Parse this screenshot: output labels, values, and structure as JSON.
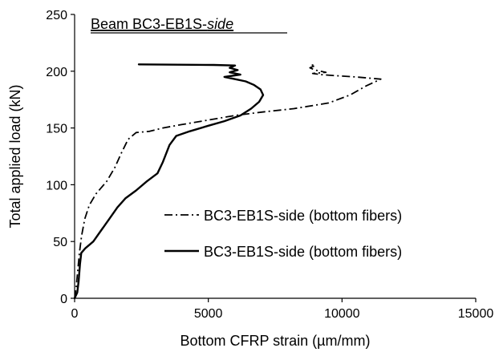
{
  "chart_data": {
    "type": "line",
    "title_prefix": "Beam BC3-EB1S-",
    "title_suffix": "side",
    "xlabel": "Bottom CFRP strain (µm/mm)",
    "ylabel": "Total applied load (kN)",
    "xlim": [
      0,
      15000
    ],
    "ylim": [
      0,
      250
    ],
    "xticks": [
      0,
      5000,
      10000,
      15000
    ],
    "yticks": [
      0,
      50,
      100,
      150,
      200,
      250
    ],
    "grid": false,
    "legend_position": "lower-right",
    "series": [
      {
        "name": "BC3-EB1S-side (bottom fibers)",
        "style": "dash-dot",
        "color": "#000000",
        "points": [
          [
            0,
            0
          ],
          [
            60,
            10
          ],
          [
            120,
            25
          ],
          [
            180,
            40
          ],
          [
            260,
            55
          ],
          [
            380,
            70
          ],
          [
            550,
            82
          ],
          [
            800,
            92
          ],
          [
            1200,
            103
          ],
          [
            1500,
            115
          ],
          [
            1750,
            128
          ],
          [
            2000,
            140
          ],
          [
            2300,
            146
          ],
          [
            2800,
            147
          ],
          [
            3300,
            150
          ],
          [
            4000,
            153
          ],
          [
            5000,
            157
          ],
          [
            6000,
            161
          ],
          [
            7000,
            164
          ],
          [
            8200,
            167
          ],
          [
            9500,
            172
          ],
          [
            10300,
            179
          ],
          [
            10900,
            187
          ],
          [
            11450,
            193
          ],
          [
            10500,
            195
          ],
          [
            9800,
            196
          ],
          [
            9200,
            197
          ],
          [
            8900,
            198
          ],
          [
            9400,
            199
          ],
          [
            9000,
            201
          ],
          [
            8800,
            203
          ],
          [
            9000,
            205
          ],
          [
            8750,
            206
          ]
        ]
      },
      {
        "name": "BC3-EB1S-side (bottom fibers)",
        "style": "solid",
        "color": "#000000",
        "points": [
          [
            0,
            0
          ],
          [
            100,
            5
          ],
          [
            150,
            15
          ],
          [
            200,
            30
          ],
          [
            250,
            40
          ],
          [
            400,
            44
          ],
          [
            700,
            50
          ],
          [
            1000,
            60
          ],
          [
            1300,
            70
          ],
          [
            1600,
            80
          ],
          [
            1900,
            88
          ],
          [
            2300,
            95
          ],
          [
            2700,
            103
          ],
          [
            3100,
            110
          ],
          [
            3300,
            120
          ],
          [
            3550,
            135
          ],
          [
            3800,
            143
          ],
          [
            4300,
            147
          ],
          [
            5000,
            152
          ],
          [
            5600,
            156
          ],
          [
            6200,
            161
          ],
          [
            6600,
            167
          ],
          [
            6900,
            173
          ],
          [
            7050,
            179
          ],
          [
            6950,
            184
          ],
          [
            6700,
            188
          ],
          [
            6400,
            191
          ],
          [
            6000,
            193
          ],
          [
            5600,
            195
          ],
          [
            6200,
            197
          ],
          [
            5800,
            199
          ],
          [
            6100,
            201
          ],
          [
            5800,
            203
          ],
          [
            6000,
            205
          ],
          [
            5200,
            205.5
          ],
          [
            2400,
            206
          ]
        ]
      }
    ]
  }
}
